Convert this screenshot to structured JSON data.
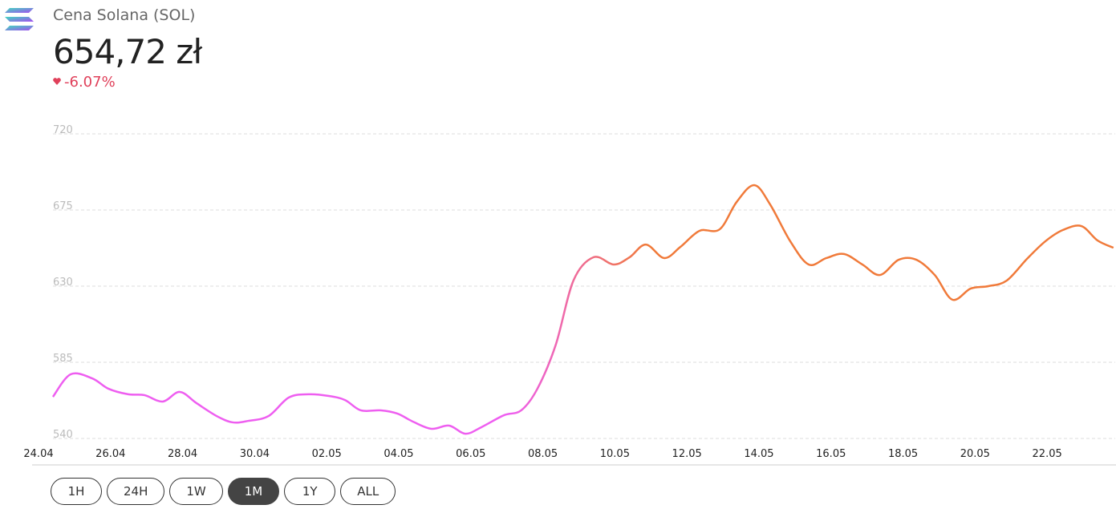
{
  "header": {
    "title": "Cena Solana (SOL)",
    "price": "654,72 zł",
    "change": "-6.07%"
  },
  "chart_data": {
    "type": "line",
    "x": [
      0.4,
      0.89,
      1.49,
      1.94,
      2.49,
      2.94,
      3.45,
      3.92,
      4.39,
      4.94,
      5.39,
      5.83,
      6.39,
      6.95,
      7.5,
      8.06,
      8.51,
      8.95,
      9.51,
      9.96,
      10.4,
      10.91,
      11.4,
      11.85,
      12.29,
      12.92,
      13.4,
      13.85,
      14.36,
      14.85,
      15.41,
      15.97,
      16.41,
      16.86,
      17.37,
      17.82,
      18.35,
      18.91,
      19.38,
      19.87,
      20.31,
      20.87,
      21.38,
      21.87,
      22.36,
      22.87,
      23.36,
      23.88,
      24.37,
      24.88,
      25.37,
      25.88,
      26.37,
      26.88,
      27.44,
      27.95,
      28.44,
      28.95,
      29.4,
      29.84
    ],
    "series": [
      {
        "values": [
          564.6,
          577.9,
          575.5,
          569.4,
          566.1,
          565.6,
          561.8,
          567.5,
          560.8,
          553.3,
          549.5,
          550.4,
          553.3,
          564.2,
          566.1,
          565.1,
          562.7,
          556.6,
          556.6,
          554.7,
          549.9,
          545.7,
          547.6,
          542.8,
          546.6,
          553.7,
          556.6,
          569.4,
          595.4,
          633.3,
          647.1,
          642.8,
          647.1,
          654.6,
          646.6,
          653.2,
          662.7,
          663.6,
          679.7,
          689.7,
          678.3,
          656.5,
          642.8,
          646.6,
          649.0,
          642.8,
          636.6,
          645.6,
          645.6,
          636.6,
          622.0,
          628.6,
          630.0,
          633.3,
          646.1,
          656.5,
          663.2,
          665.5,
          657.0,
          652.7
        ],
        "colors": [
          "#ee5ef0",
          "#f07a3a"
        ]
      }
    ],
    "xlim": [
      0,
      29.89
    ],
    "xticks": [
      {
        "value": 0,
        "label": "24.04"
      },
      {
        "value": 2,
        "label": "26.04"
      },
      {
        "value": 4,
        "label": "28.04"
      },
      {
        "value": 6,
        "label": "30.04"
      },
      {
        "value": 8,
        "label": "02.05"
      },
      {
        "value": 10,
        "label": "04.05"
      },
      {
        "value": 12,
        "label": "06.05"
      },
      {
        "value": 14,
        "label": "08.05"
      },
      {
        "value": 16,
        "label": "10.05"
      },
      {
        "value": 18,
        "label": "12.05"
      },
      {
        "value": 20,
        "label": "14.05"
      },
      {
        "value": 22,
        "label": "16.05"
      },
      {
        "value": 24,
        "label": "18.05"
      },
      {
        "value": 26,
        "label": "20.05"
      },
      {
        "value": 28,
        "label": "22.05"
      }
    ],
    "ylim": [
      540,
      720
    ],
    "yticks": [
      540,
      585,
      630,
      675,
      720
    ],
    "grid": true
  },
  "range_buttons": [
    "1H",
    "24H",
    "1W",
    "1M",
    "1Y",
    "ALL"
  ],
  "active_range": "1M"
}
